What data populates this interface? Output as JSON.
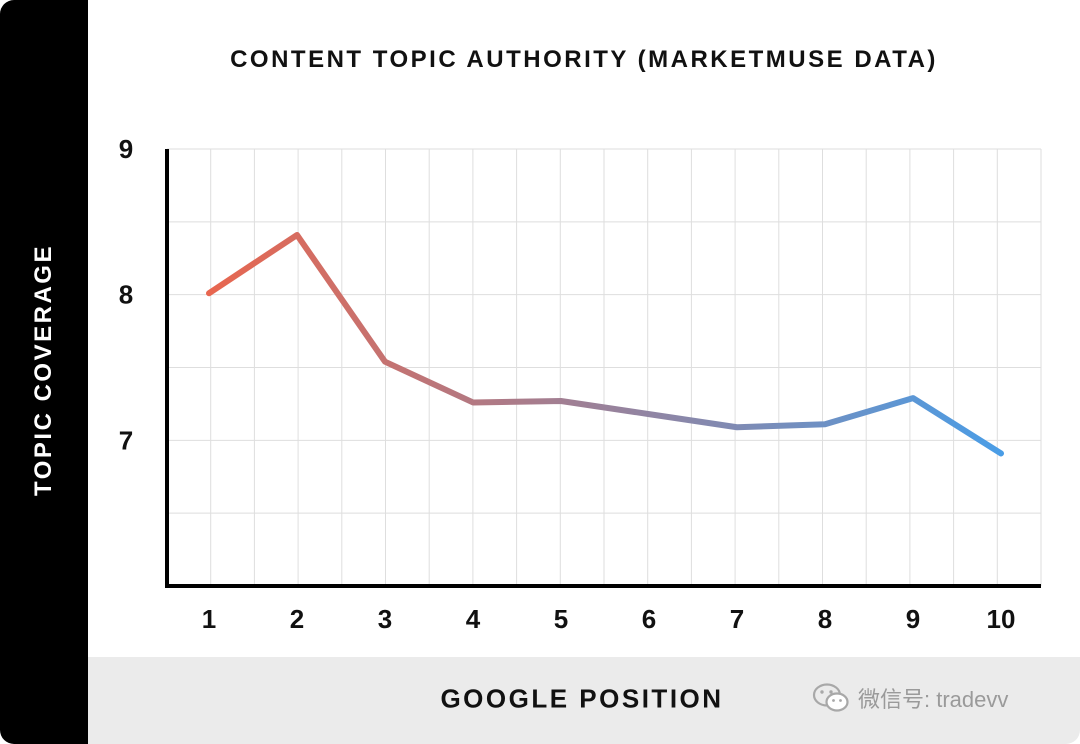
{
  "chart_data": {
    "type": "line",
    "title": "CONTENT TOPIC AUTHORITY (MARKETMUSE DATA)",
    "xlabel": "GOOGLE POSITION",
    "ylabel": "TOPIC COVERAGE",
    "x": [
      1,
      2,
      3,
      4,
      5,
      6,
      7,
      8,
      9,
      10
    ],
    "x_ticks": [
      "1",
      "2",
      "3",
      "4",
      "5",
      "6",
      "7",
      "8",
      "9",
      "10"
    ],
    "series": [
      {
        "values": [
          8.01,
          8.41,
          7.54,
          7.26,
          7.27,
          7.18,
          7.09,
          7.11,
          7.29,
          6.91
        ]
      }
    ],
    "y_ticks": [
      "9",
      "8",
      "7"
    ],
    "y_tick_values": [
      9,
      8,
      7
    ],
    "ylim": [
      6.0,
      9.0
    ],
    "grid": true,
    "line_gradient": [
      "#e8664f",
      "#4a9de6"
    ],
    "grid_color": "#dedede",
    "axis_color": "#000000"
  },
  "watermark": {
    "text": "微信号: tradevv",
    "icon": "wechat-icon"
  }
}
